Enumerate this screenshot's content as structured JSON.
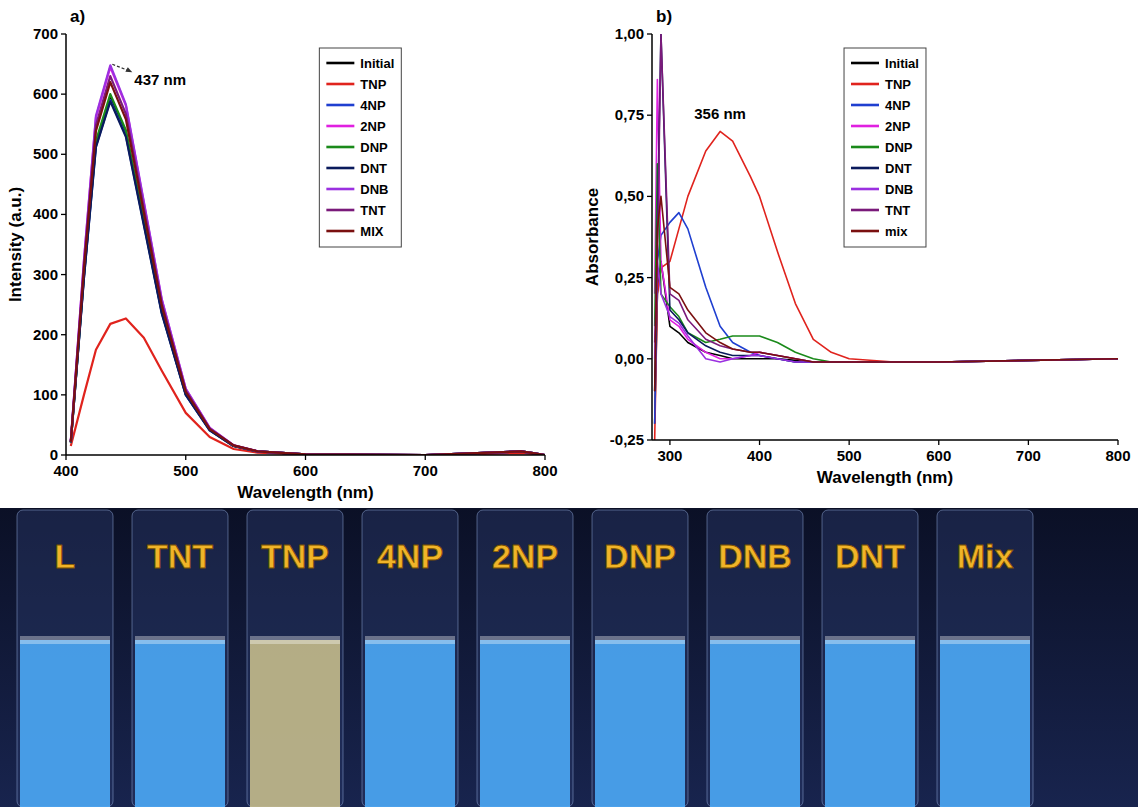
{
  "chart_data": [
    {
      "type": "line",
      "panel": "a)",
      "x_label": "Wavelength (nm)",
      "y_label": "Intensity (a.u.)",
      "x": [
        404,
        415,
        425,
        437,
        450,
        465,
        480,
        500,
        520,
        540,
        560,
        600,
        700,
        780,
        790,
        800
      ],
      "xlim": [
        400,
        800
      ],
      "xticks": [
        400,
        500,
        600,
        700,
        800
      ],
      "ylim": [
        0,
        700
      ],
      "yticks": [
        0,
        100,
        200,
        300,
        400,
        500,
        600,
        700
      ],
      "grid": false,
      "legend": "upper right",
      "annotations": [
        {
          "text": "437 nm",
          "x": 437,
          "y": 648
        }
      ],
      "series": [
        {
          "name": "Initial",
          "color": "#000000",
          "values": [
            21,
            298,
            518,
            595,
            536,
            387,
            238,
            101,
            42,
            15,
            6,
            1,
            0,
            6,
            3,
            0
          ]
        },
        {
          "name": "TNP",
          "color": "#e0231d",
          "values": [
            15,
            100,
            175,
            218,
            227,
            195,
            140,
            70,
            30,
            10,
            4,
            1,
            0,
            3,
            2,
            0
          ]
        },
        {
          "name": "4NP",
          "color": "#1f3fd0",
          "values": [
            21,
            295,
            513,
            590,
            531,
            384,
            236,
            100,
            41,
            15,
            6,
            1,
            0,
            6,
            3,
            0
          ]
        },
        {
          "name": "2NP",
          "color": "#e020e0",
          "values": [
            23,
            323,
            561,
            645,
            581,
            419,
            258,
            110,
            45,
            16,
            6,
            1,
            0,
            6,
            3,
            0
          ]
        },
        {
          "name": "DNP",
          "color": "#1a8a1a",
          "values": [
            21,
            300,
            522,
            600,
            540,
            390,
            240,
            102,
            42,
            15,
            6,
            1,
            0,
            6,
            3,
            0
          ]
        },
        {
          "name": "DNT",
          "color": "#0a1a5c",
          "values": [
            21,
            294,
            512,
            588,
            529,
            382,
            235,
            100,
            41,
            15,
            6,
            1,
            0,
            6,
            3,
            0
          ]
        },
        {
          "name": "DNB",
          "color": "#9b30e0",
          "values": [
            23,
            324,
            564,
            648,
            583,
            421,
            259,
            110,
            45,
            16,
            6,
            1,
            0,
            6,
            3,
            0
          ]
        },
        {
          "name": "TNT",
          "color": "#7a1a7a",
          "values": [
            22,
            315,
            548,
            630,
            567,
            410,
            252,
            107,
            44,
            16,
            6,
            1,
            0,
            6,
            3,
            0
          ]
        },
        {
          "name": "MIX",
          "color": "#7a1010",
          "values": [
            22,
            310,
            539,
            620,
            558,
            403,
            248,
            105,
            43,
            16,
            6,
            1,
            0,
            6,
            3,
            0
          ]
        }
      ]
    },
    {
      "type": "line",
      "panel": "b)",
      "x_label": "Wavelength (nm)",
      "y_label": "Absorbance",
      "x": [
        283,
        286,
        290,
        300,
        310,
        320,
        340,
        356,
        370,
        390,
        400,
        420,
        440,
        460,
        480,
        500,
        550,
        600,
        700,
        800
      ],
      "xlim": [
        280,
        800
      ],
      "xticks": [
        300,
        400,
        500,
        600,
        700,
        800
      ],
      "ylim": [
        -0.25,
        1.0
      ],
      "yticks": [
        {
          "value": -0.25,
          "label": "-0,25"
        },
        {
          "value": 0,
          "label": "0,00"
        },
        {
          "value": 0.25,
          "label": "0,25"
        },
        {
          "value": 0.5,
          "label": "0,50"
        },
        {
          "value": 0.75,
          "label": "0,75"
        },
        {
          "value": 1.0,
          "label": "1,00"
        }
      ],
      "grid": false,
      "legend": "upper center",
      "annotations": [
        {
          "text": "356 nm",
          "x": 356,
          "y": 0.7
        }
      ],
      "series": [
        {
          "name": "Initial",
          "color": "#000000",
          "values": [
            -0.2,
            0.2,
            0.3,
            0.1,
            0.08,
            0.05,
            0.02,
            0.01,
            0.0,
            0.0,
            0.0,
            0.0,
            -0.005,
            -0.01,
            -0.01,
            -0.01,
            -0.01,
            -0.01,
            -0.005,
            0
          ]
        },
        {
          "name": "TNP",
          "color": "#e0231d",
          "values": [
            -0.25,
            0.2,
            0.28,
            0.3,
            0.4,
            0.5,
            0.64,
            0.7,
            0.67,
            0.56,
            0.5,
            0.33,
            0.17,
            0.06,
            0.02,
            0.0,
            -0.01,
            -0.01,
            -0.005,
            0
          ]
        },
        {
          "name": "4NP",
          "color": "#1f3fd0",
          "values": [
            -0.2,
            0.3,
            0.38,
            0.42,
            0.45,
            0.4,
            0.22,
            0.1,
            0.05,
            0.02,
            0.01,
            0,
            -0.01,
            -0.01,
            -0.01,
            -0.01,
            -0.01,
            -0.01,
            -0.005,
            0
          ]
        },
        {
          "name": "2NP",
          "color": "#e020e0",
          "values": [
            0.2,
            0.86,
            0.3,
            0.12,
            0.1,
            0.06,
            0.02,
            0.0,
            0.0,
            0.01,
            0.02,
            0.01,
            0,
            -0.01,
            -0.01,
            -0.01,
            -0.01,
            -0.01,
            -0.005,
            0
          ]
        },
        {
          "name": "DNP",
          "color": "#1a8a1a",
          "values": [
            0.1,
            0.6,
            0.2,
            0.16,
            0.13,
            0.08,
            0.05,
            0.06,
            0.07,
            0.07,
            0.07,
            0.05,
            0.02,
            0.0,
            -0.01,
            -0.01,
            -0.01,
            -0.01,
            -0.005,
            0
          ]
        },
        {
          "name": "DNT",
          "color": "#0a1a5c",
          "values": [
            -0.1,
            0.4,
            1.0,
            0.15,
            0.12,
            0.08,
            0.04,
            0.02,
            0.01,
            0.01,
            0.01,
            0.0,
            -0.01,
            -0.01,
            -0.01,
            -0.01,
            -0.01,
            -0.01,
            -0.005,
            0
          ]
        },
        {
          "name": "DNB",
          "color": "#9b30e0",
          "values": [
            0.0,
            0.3,
            0.2,
            0.13,
            0.11,
            0.07,
            0.0,
            -0.01,
            0.0,
            0.01,
            0.01,
            0.0,
            -0.01,
            -0.01,
            -0.01,
            -0.01,
            -0.01,
            -0.01,
            -0.005,
            0
          ]
        },
        {
          "name": "TNT",
          "color": "#7a1a7a",
          "values": [
            0.05,
            0.3,
            1.0,
            0.2,
            0.18,
            0.12,
            0.06,
            0.04,
            0.03,
            0.02,
            0.02,
            0.01,
            0,
            -0.01,
            -0.01,
            -0.01,
            -0.01,
            -0.01,
            -0.005,
            0
          ]
        },
        {
          "name": "mix",
          "color": "#7a1010",
          "values": [
            -0.1,
            0.4,
            0.5,
            0.22,
            0.2,
            0.15,
            0.08,
            0.05,
            0.03,
            0.02,
            0.02,
            0.01,
            0,
            -0.01,
            -0.01,
            -0.01,
            -0.01,
            -0.01,
            -0.005,
            0
          ]
        }
      ]
    }
  ],
  "photo": {
    "labels": [
      "L",
      "TNT",
      "TNP",
      "4NP",
      "2NP",
      "DNP",
      "DNB",
      "DNT",
      "Mix"
    ],
    "colors": [
      "#4fb0ff",
      "#4fb0ff",
      "#cfc48e",
      "#4fb0ff",
      "#4fb0ff",
      "#4fb0ff",
      "#4fb0ff",
      "#4fb0ff",
      "#4fb0ff"
    ]
  }
}
